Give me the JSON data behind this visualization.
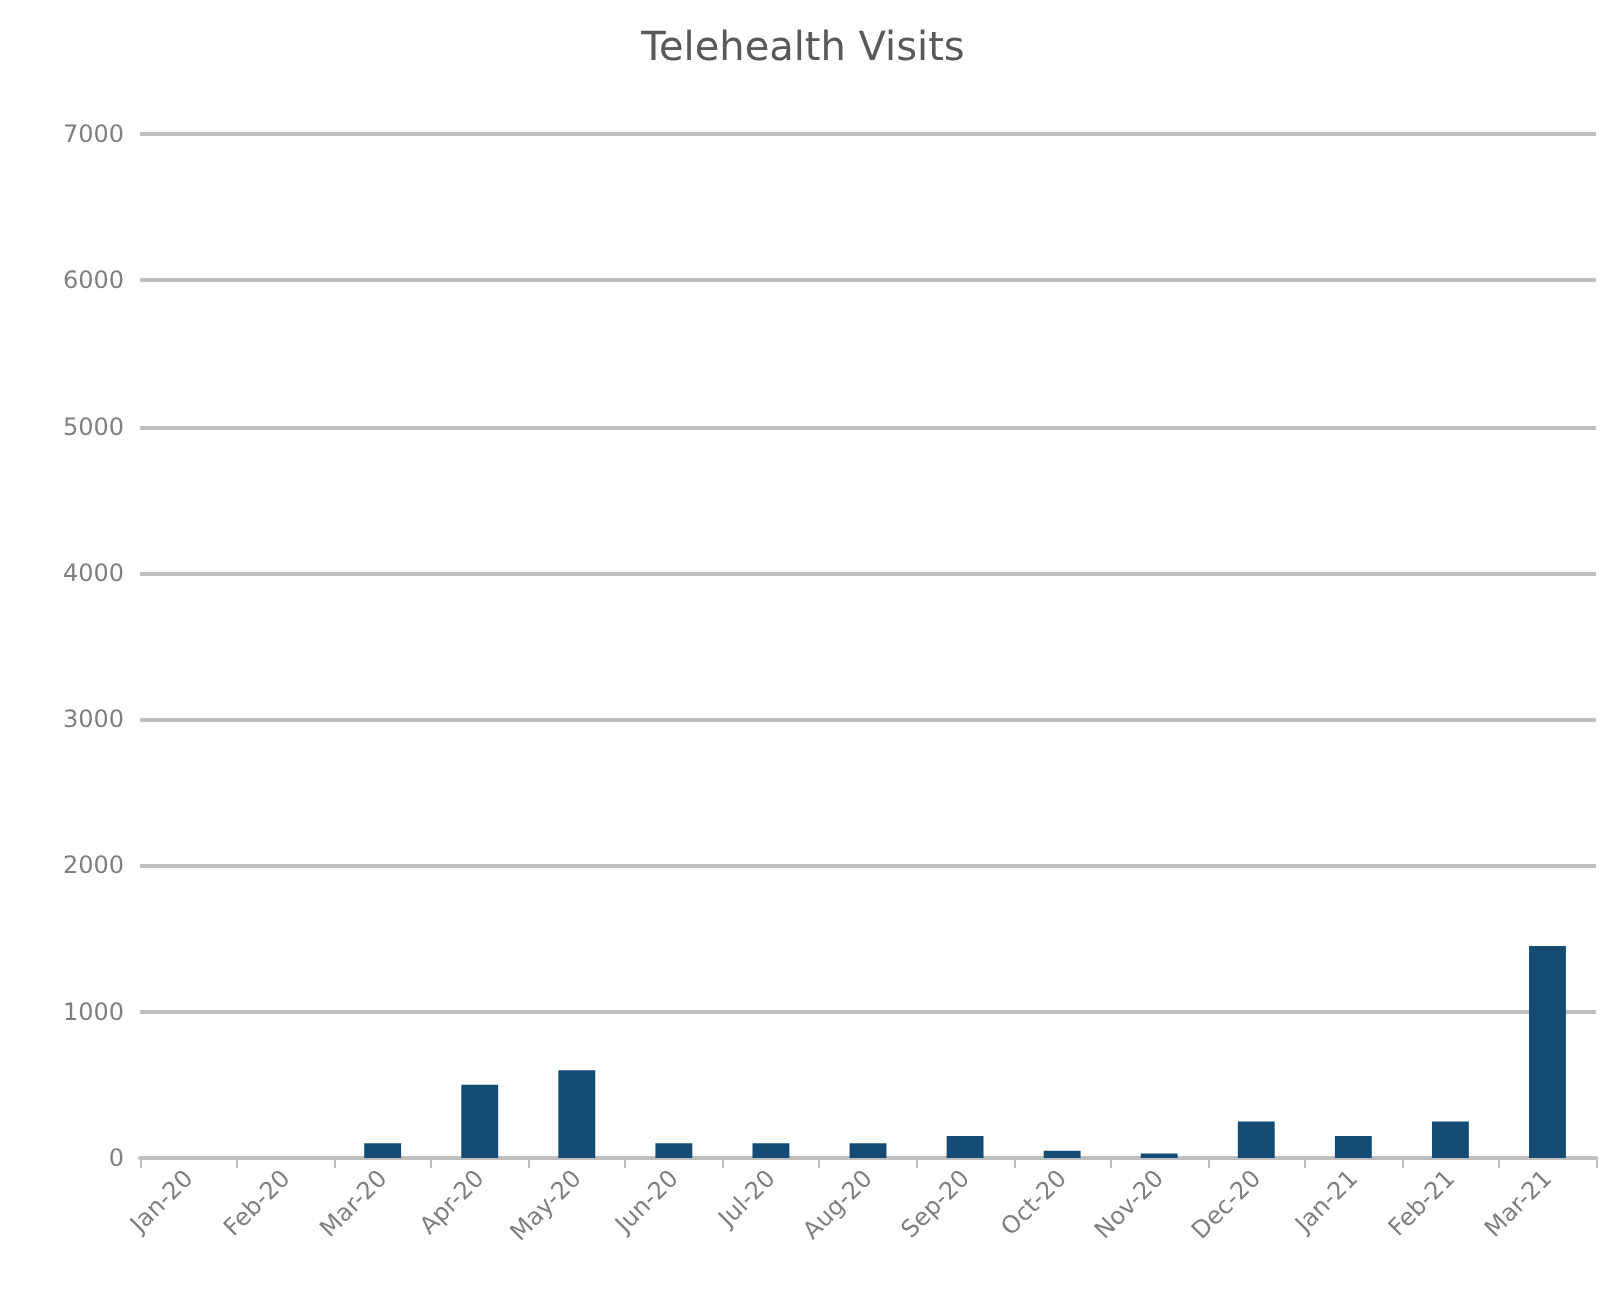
{
  "chart_data": {
    "type": "bar",
    "title": "Telehealth Visits",
    "categories": [
      "Jan-20",
      "Feb-20",
      "Mar-20",
      "Apr-20",
      "May-20",
      "Jun-20",
      "Jul-20",
      "Aug-20",
      "Sep-20",
      "Oct-20",
      "Nov-20",
      "Dec-20",
      "Jan-21",
      "Feb-21",
      "Mar-21"
    ],
    "values": [
      0,
      0,
      100,
      500,
      600,
      100,
      100,
      100,
      150,
      50,
      30,
      250,
      150,
      250,
      1450
    ],
    "color": "#144c76",
    "ylim": [
      0,
      7000
    ],
    "yticks": [
      0,
      1000,
      2000,
      3000,
      4000,
      5000,
      6000,
      7000
    ],
    "grid": "y"
  }
}
